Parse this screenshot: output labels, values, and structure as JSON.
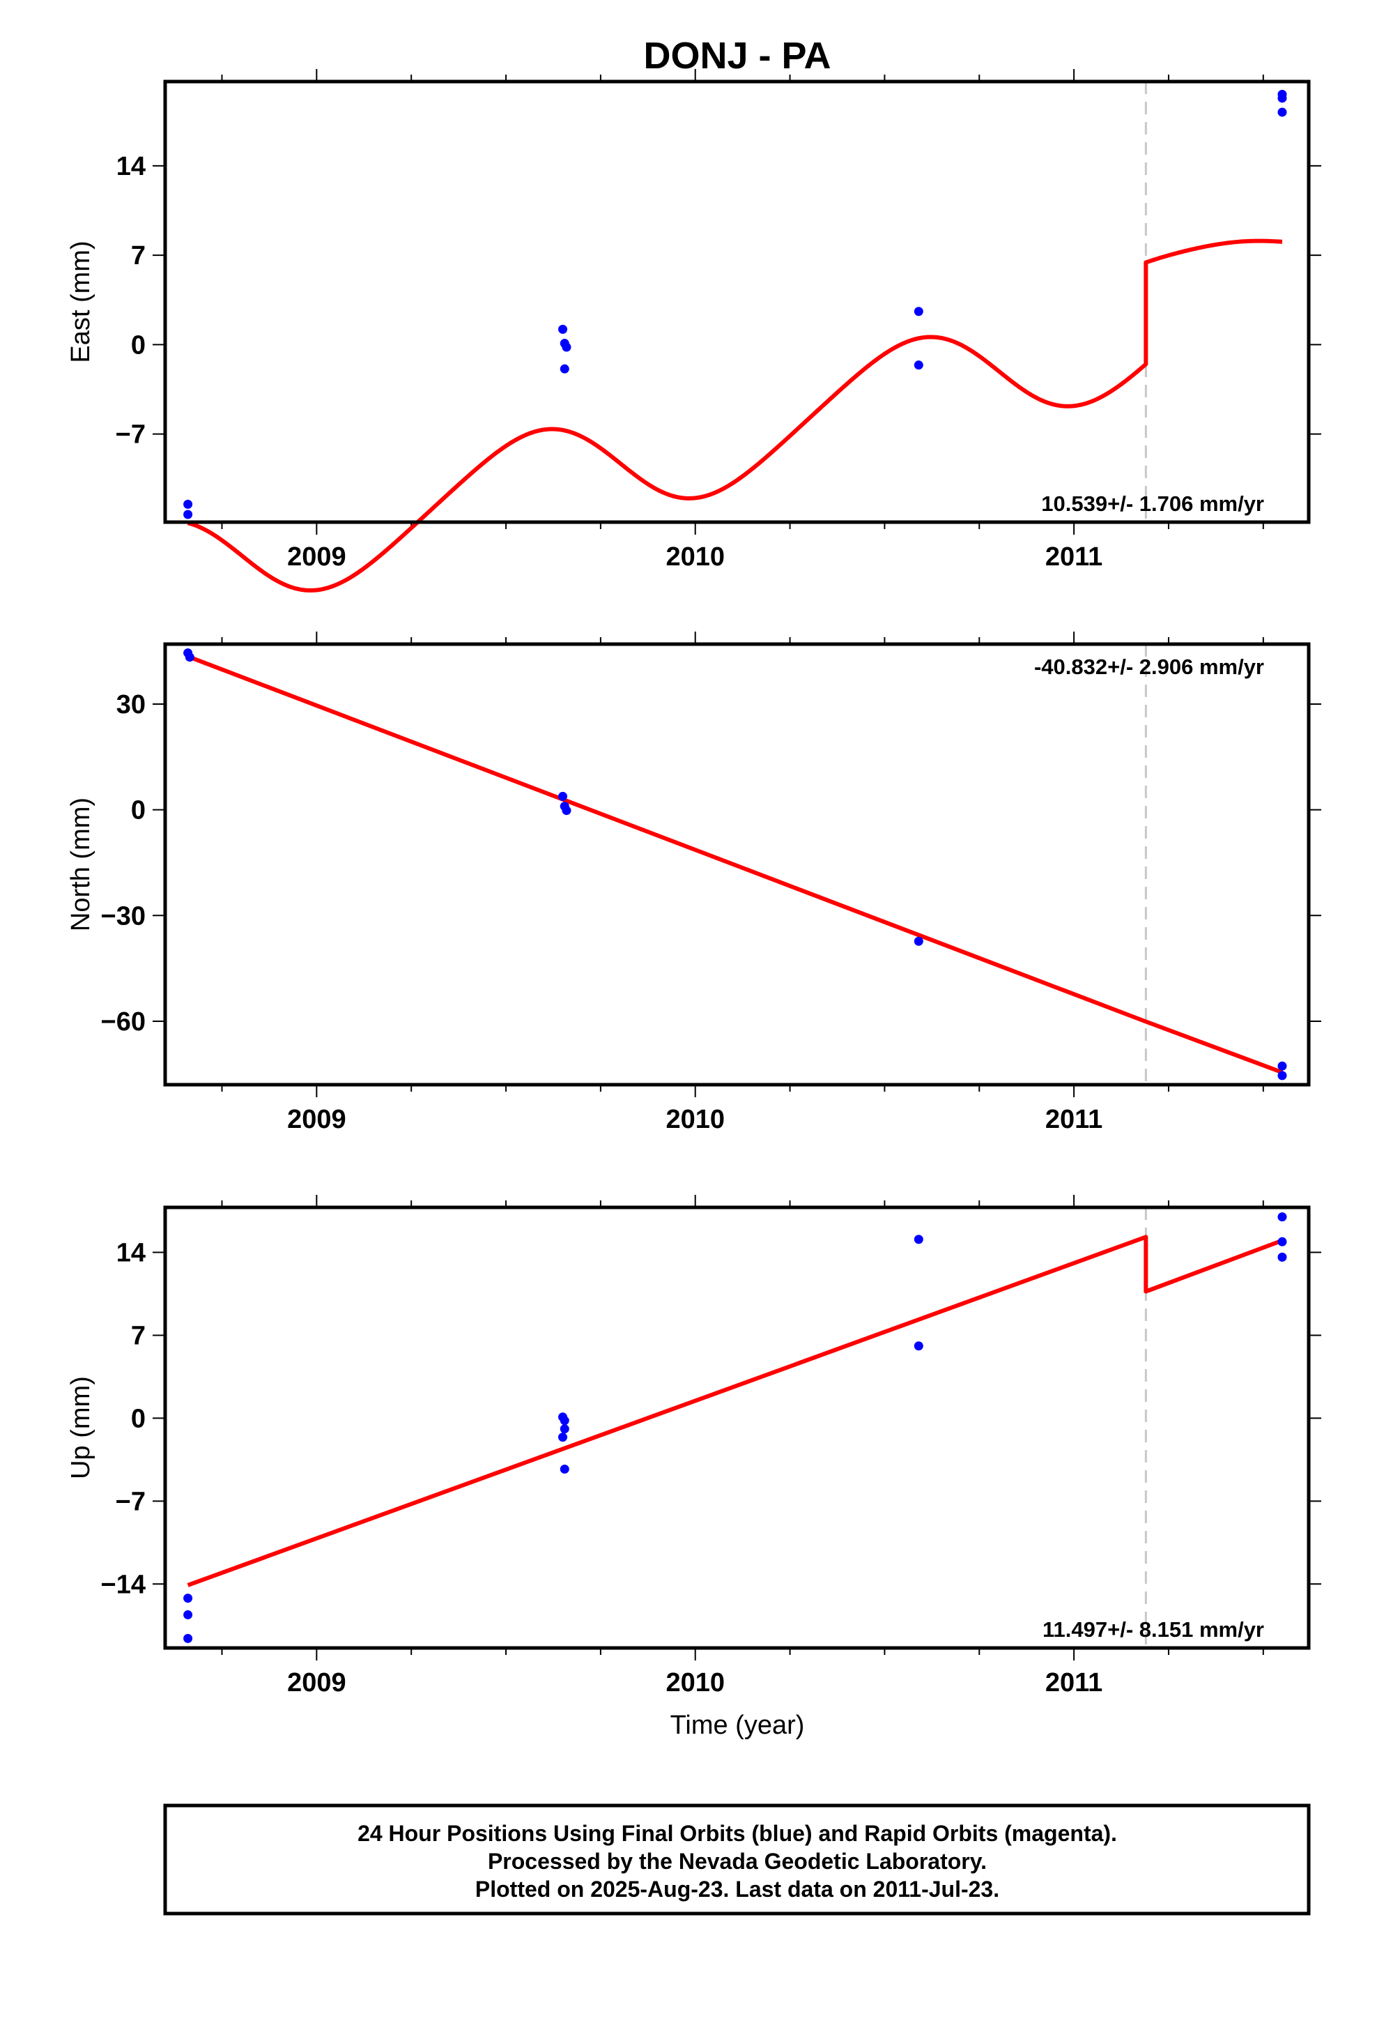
{
  "title": "DONJ - PA",
  "colors": {
    "final_orbits": "#0000ff",
    "rapid_orbits": "#ff00ff",
    "model": "#ff0000",
    "step_marker": "#c8c8c8",
    "frame": "#000000"
  },
  "chart_data": [
    {
      "type": "scatter",
      "name": "East",
      "ylabel": "East (mm)",
      "xlabel": "",
      "xlim": [
        2008.6,
        2011.62
      ],
      "ylim": [
        -13.9,
        20.6
      ],
      "yticks": [
        -7,
        0,
        7,
        14
      ],
      "ytick_labels": [
        "−7",
        "0",
        "7",
        "14"
      ],
      "xticks": [
        2009,
        2010,
        2011
      ],
      "xtick_labels": [
        "2009",
        "2010",
        "2011"
      ],
      "rate_text": "10.539+/- 1.706 mm/yr",
      "rate_position": "bottom-right",
      "step_epoch": 2011.19,
      "series": [
        {
          "role": "final-orbits",
          "x": [
            2008.66,
            2008.66,
            2009.65,
            2009.655,
            2009.66,
            2009.655,
            2010.59,
            2010.59,
            2011.55,
            2011.55,
            2011.55
          ],
          "y": [
            -12.5,
            -13.3,
            1.2,
            0.1,
            -0.2,
            -1.9,
            2.6,
            -1.6,
            19.6,
            19.3,
            18.2
          ]
        }
      ],
      "model": {
        "type": "seasonal",
        "x0": 2008.66,
        "x1": 2011.55,
        "seg1": {
          "a": -7.9,
          "b": 7.21,
          "s": -1.32,
          "c": -3.84,
          "s2": 0.34,
          "c2": -0.27
        },
        "seg2": {
          "a": -5.57,
          "b": 8.92,
          "s": 1.65,
          "c": -0.07,
          "s2": 0.08,
          "c2": 0.24
        }
      }
    },
    {
      "type": "scatter",
      "name": "North",
      "ylabel": "North (mm)",
      "xlabel": "",
      "xlim": [
        2008.6,
        2011.62
      ],
      "ylim": [
        -78,
        47
      ],
      "yticks": [
        -60,
        -30,
        0,
        30
      ],
      "ytick_labels": [
        "−60",
        "−30",
        "0",
        "30"
      ],
      "xticks": [
        2009,
        2010,
        2011
      ],
      "xtick_labels": [
        "2009",
        "2010",
        "2011"
      ],
      "rate_text": "-40.832+/- 2.906 mm/yr",
      "rate_position": "top-right",
      "step_epoch": 2011.19,
      "series": [
        {
          "role": "final-orbits",
          "x": [
            2008.66,
            2008.665,
            2009.65,
            2009.655,
            2009.66,
            2010.59,
            2011.55,
            2011.55
          ],
          "y": [
            44.5,
            43.3,
            3.8,
            1.0,
            -0.2,
            -37.3,
            -72.7,
            -75.4
          ]
        }
      ],
      "model": {
        "type": "linear",
        "segments": [
          {
            "x0": 2008.66,
            "y0": 43.5,
            "x1": 2011.19,
            "y1": -60.1
          },
          {
            "x0": 2011.19,
            "y0": -60.1,
            "x1": 2011.55,
            "y1": -74.5
          }
        ]
      }
    },
    {
      "type": "scatter",
      "name": "Up",
      "ylabel": "Up (mm)",
      "xlabel": "Time (year)",
      "xlim": [
        2008.6,
        2011.62
      ],
      "ylim": [
        -19.4,
        17.8
      ],
      "yticks": [
        -14,
        -7,
        0,
        7,
        14
      ],
      "ytick_labels": [
        "−14",
        "−7",
        "0",
        "7",
        "14"
      ],
      "xticks": [
        2009,
        2010,
        2011
      ],
      "xtick_labels": [
        "2009",
        "2010",
        "2011"
      ],
      "rate_text": "11.497+/- 8.151 mm/yr",
      "rate_position": "bottom-right",
      "step_epoch": 2011.19,
      "series": [
        {
          "role": "final-orbits",
          "x": [
            2008.66,
            2008.66,
            2008.66,
            2009.65,
            2009.655,
            2009.655,
            2009.65,
            2009.655,
            2010.59,
            2010.59,
            2011.55,
            2011.55,
            2011.55
          ],
          "y": [
            -15.2,
            -16.6,
            -18.6,
            0.1,
            -0.2,
            -0.9,
            -1.6,
            -4.3,
            15.1,
            6.1,
            17.0,
            14.9,
            13.6
          ]
        }
      ],
      "model": {
        "type": "linear",
        "segments": [
          {
            "x0": 2008.66,
            "y0": -14.1,
            "x1": 2011.19,
            "y1": 15.3
          },
          {
            "x0": 2011.19,
            "y0": 10.7,
            "x1": 2011.55,
            "y1": 15.0
          }
        ]
      }
    }
  ],
  "footer": {
    "line1": "24 Hour Positions Using Final Orbits (blue) and Rapid Orbits (magenta).",
    "line2": "Processed by the Nevada Geodetic Laboratory.",
    "line3": "Plotted on 2025-Aug-23. Last data on 2011-Jul-23."
  }
}
